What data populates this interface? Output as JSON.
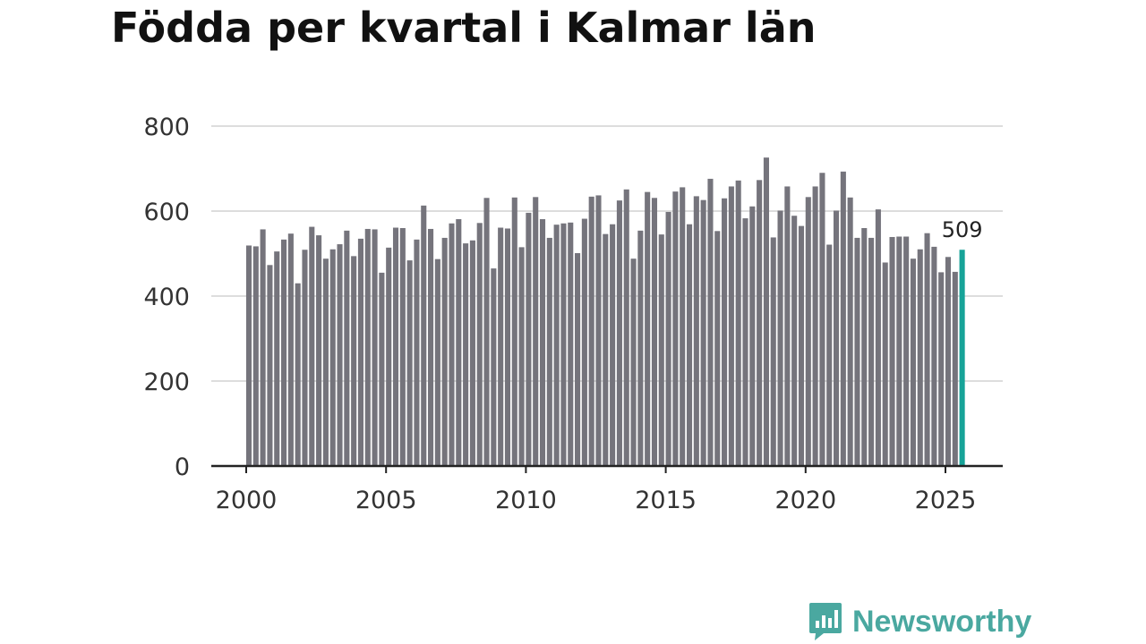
{
  "chart_data": {
    "type": "bar",
    "title": "Födda per kvartal i Kalmar län",
    "xlabel": "",
    "ylabel": "",
    "ylim": [
      0,
      800
    ],
    "yticks": [
      0,
      200,
      400,
      600,
      800
    ],
    "xticks": [
      "2000",
      "2005",
      "2010",
      "2015",
      "2020",
      "2025"
    ],
    "x_start": 2000,
    "values": [
      519,
      517,
      557,
      473,
      505,
      533,
      547,
      430,
      509,
      563,
      543,
      488,
      510,
      522,
      554,
      494,
      535,
      558,
      557,
      455,
      514,
      561,
      560,
      484,
      533,
      613,
      558,
      487,
      537,
      571,
      581,
      524,
      531,
      572,
      631,
      465,
      561,
      559,
      632,
      515,
      596,
      633,
      581,
      537,
      568,
      571,
      573,
      501,
      582,
      634,
      637,
      546,
      569,
      625,
      651,
      488,
      554,
      645,
      631,
      545,
      598,
      646,
      656,
      569,
      635,
      626,
      676,
      553,
      630,
      658,
      672,
      583,
      611,
      673,
      726,
      538,
      601,
      658,
      589,
      565,
      633,
      658,
      690,
      521,
      601,
      693,
      632,
      537,
      560,
      537,
      604,
      479,
      539,
      540,
      540,
      488,
      510,
      548,
      516,
      456,
      492,
      457,
      509
    ],
    "highlight_label": "509",
    "colors": {
      "bar": "#75747c",
      "highlight": "#17a398",
      "grid": "#dddddd",
      "axis": "#222222"
    },
    "grid": true,
    "legend": "none"
  },
  "brand": {
    "name": "Newsworthy",
    "icon": "newsworthy-logo-icon"
  }
}
